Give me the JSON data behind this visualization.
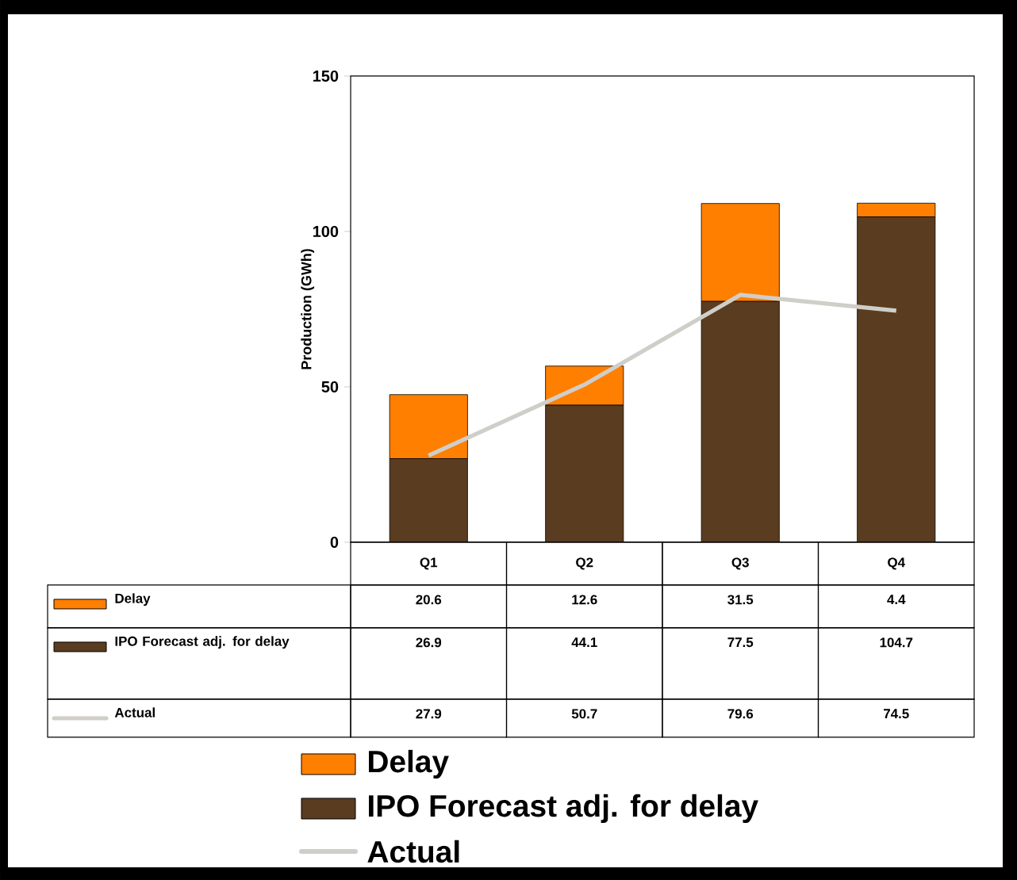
{
  "chart_data": {
    "type": "bar",
    "stacked": true,
    "ylabel": "Production (GWh)",
    "categories": [
      "Q1",
      "Q2",
      "Q3",
      "Q4"
    ],
    "series": [
      {
        "name": "IPO Forecast adj. for delay",
        "color": "#5a3c20",
        "values": [
          26.9,
          44.1,
          77.5,
          104.7
        ]
      },
      {
        "name": "Delay",
        "color": "#ff7f00",
        "values": [
          20.6,
          12.6,
          31.5,
          4.4
        ]
      },
      {
        "name": "Actual",
        "type": "line",
        "color": "#d0cec8",
        "values": [
          27.9,
          50.7,
          79.6,
          74.5
        ]
      }
    ],
    "ylim": [
      0,
      150
    ],
    "yticks": [
      0,
      50,
      100,
      150
    ],
    "data_labels": true,
    "legend": "bottom"
  }
}
